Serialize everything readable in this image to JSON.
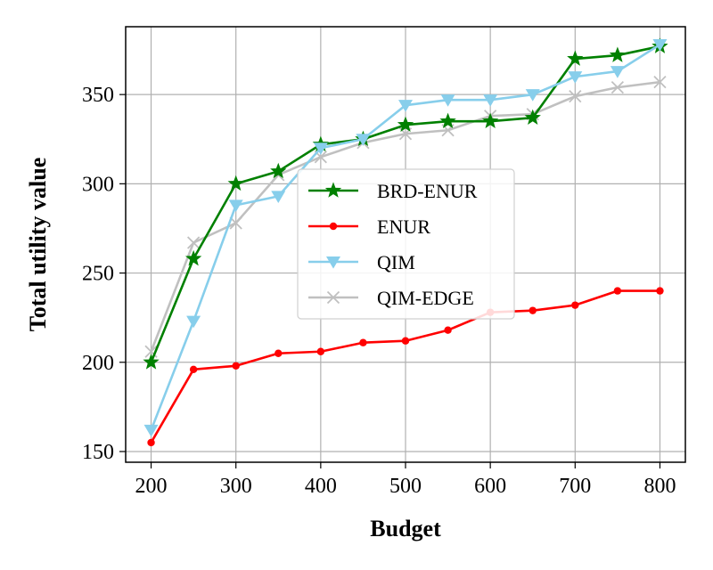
{
  "chart_data": {
    "type": "line",
    "xlabel": "Budget",
    "ylabel": "Total utility value",
    "xlim": [
      170,
      830
    ],
    "ylim": [
      144,
      388
    ],
    "xticks": [
      200,
      300,
      400,
      500,
      600,
      700,
      800
    ],
    "yticks": [
      150,
      200,
      250,
      300,
      350
    ],
    "grid": true,
    "legend_position": "center",
    "x": [
      200,
      250,
      300,
      350,
      400,
      450,
      500,
      550,
      600,
      650,
      700,
      750,
      800
    ],
    "series": [
      {
        "name": "BRD-ENUR",
        "color": "#008000",
        "marker": "star",
        "values": [
          200,
          258,
          300,
          307,
          322,
          325,
          333,
          335,
          335,
          337,
          370,
          372,
          377
        ]
      },
      {
        "name": "ENUR",
        "color": "#ff0000",
        "marker": "dot",
        "values": [
          155,
          196,
          198,
          205,
          206,
          211,
          212,
          218,
          228,
          229,
          232,
          240,
          240
        ]
      },
      {
        "name": "QIM",
        "color": "#87ceeb",
        "marker": "triangle-down",
        "values": [
          162,
          223,
          288,
          293,
          320,
          325,
          344,
          347,
          347,
          350,
          360,
          363,
          378
        ]
      },
      {
        "name": "QIM-EDGE",
        "color": "#c0c0c0",
        "marker": "x",
        "values": [
          206,
          267,
          278,
          305,
          315,
          323,
          328,
          330,
          338,
          339,
          349,
          354,
          357
        ]
      }
    ]
  }
}
